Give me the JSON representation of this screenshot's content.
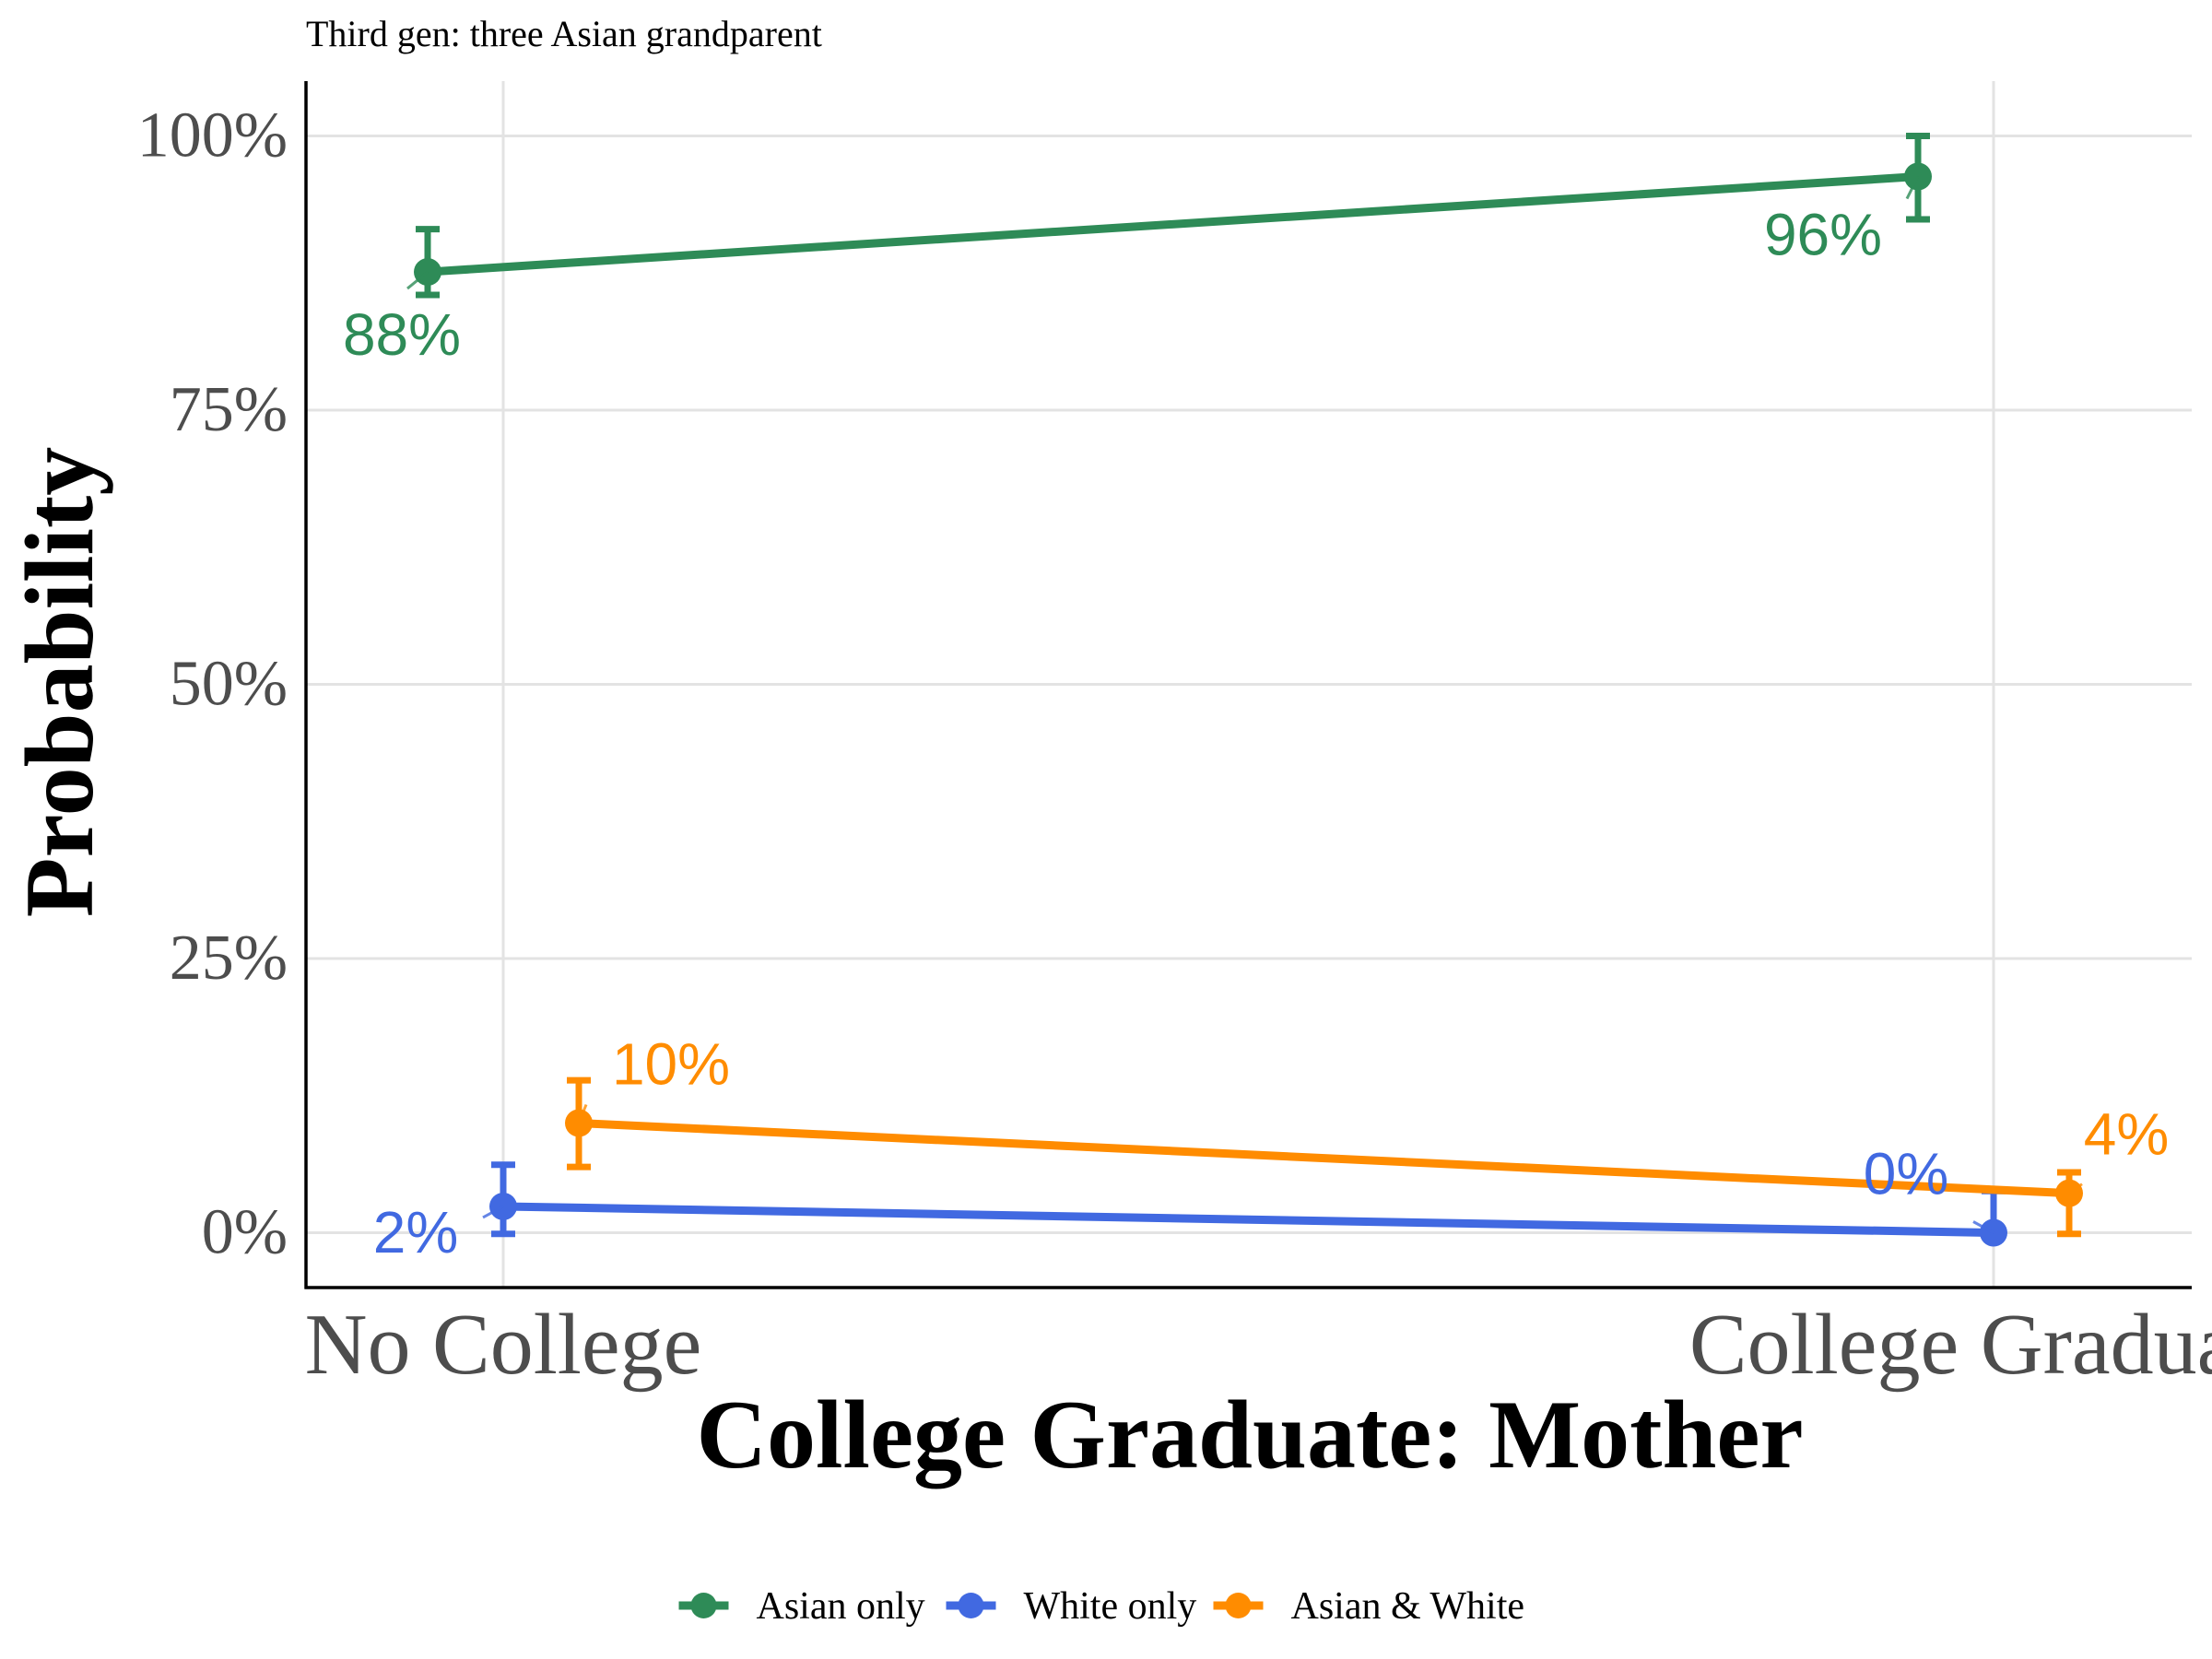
{
  "chart_data": {
    "type": "line",
    "subtitle": "Third gen: three Asian grandparent",
    "xlabel": "College Graduate: Mother",
    "ylabel": "Probability",
    "categories": [
      "No College",
      "College Graduate"
    ],
    "ylim": [
      -0.05,
      1.05
    ],
    "yticks": [
      0,
      0.25,
      0.5,
      0.75,
      1.0
    ],
    "ytick_labels": [
      "0%",
      "25%",
      "50%",
      "75%",
      "100%"
    ],
    "grid": true,
    "legend_position": "bottom",
    "series": [
      {
        "name": "Asian only",
        "color": "#2E8B57",
        "values": [
          0.876,
          0.963
        ],
        "ci_low": [
          0.855,
          0.924
        ],
        "ci_high": [
          0.915,
          1.0
        ],
        "labels": [
          "88%",
          "96%"
        ]
      },
      {
        "name": "White only",
        "color": "#4169E1",
        "values": [
          0.024,
          0.0
        ],
        "ci_low": [
          -0.001,
          -0.001
        ],
        "ci_high": [
          0.062,
          0.038
        ],
        "labels": [
          "2%",
          "0%"
        ]
      },
      {
        "name": "Asian & White",
        "color": "#FF8C00",
        "values": [
          0.1,
          0.036
        ],
        "ci_low": [
          0.06,
          -0.001
        ],
        "ci_high": [
          0.139,
          0.055
        ],
        "labels": [
          "10%",
          "4%"
        ]
      }
    ]
  }
}
